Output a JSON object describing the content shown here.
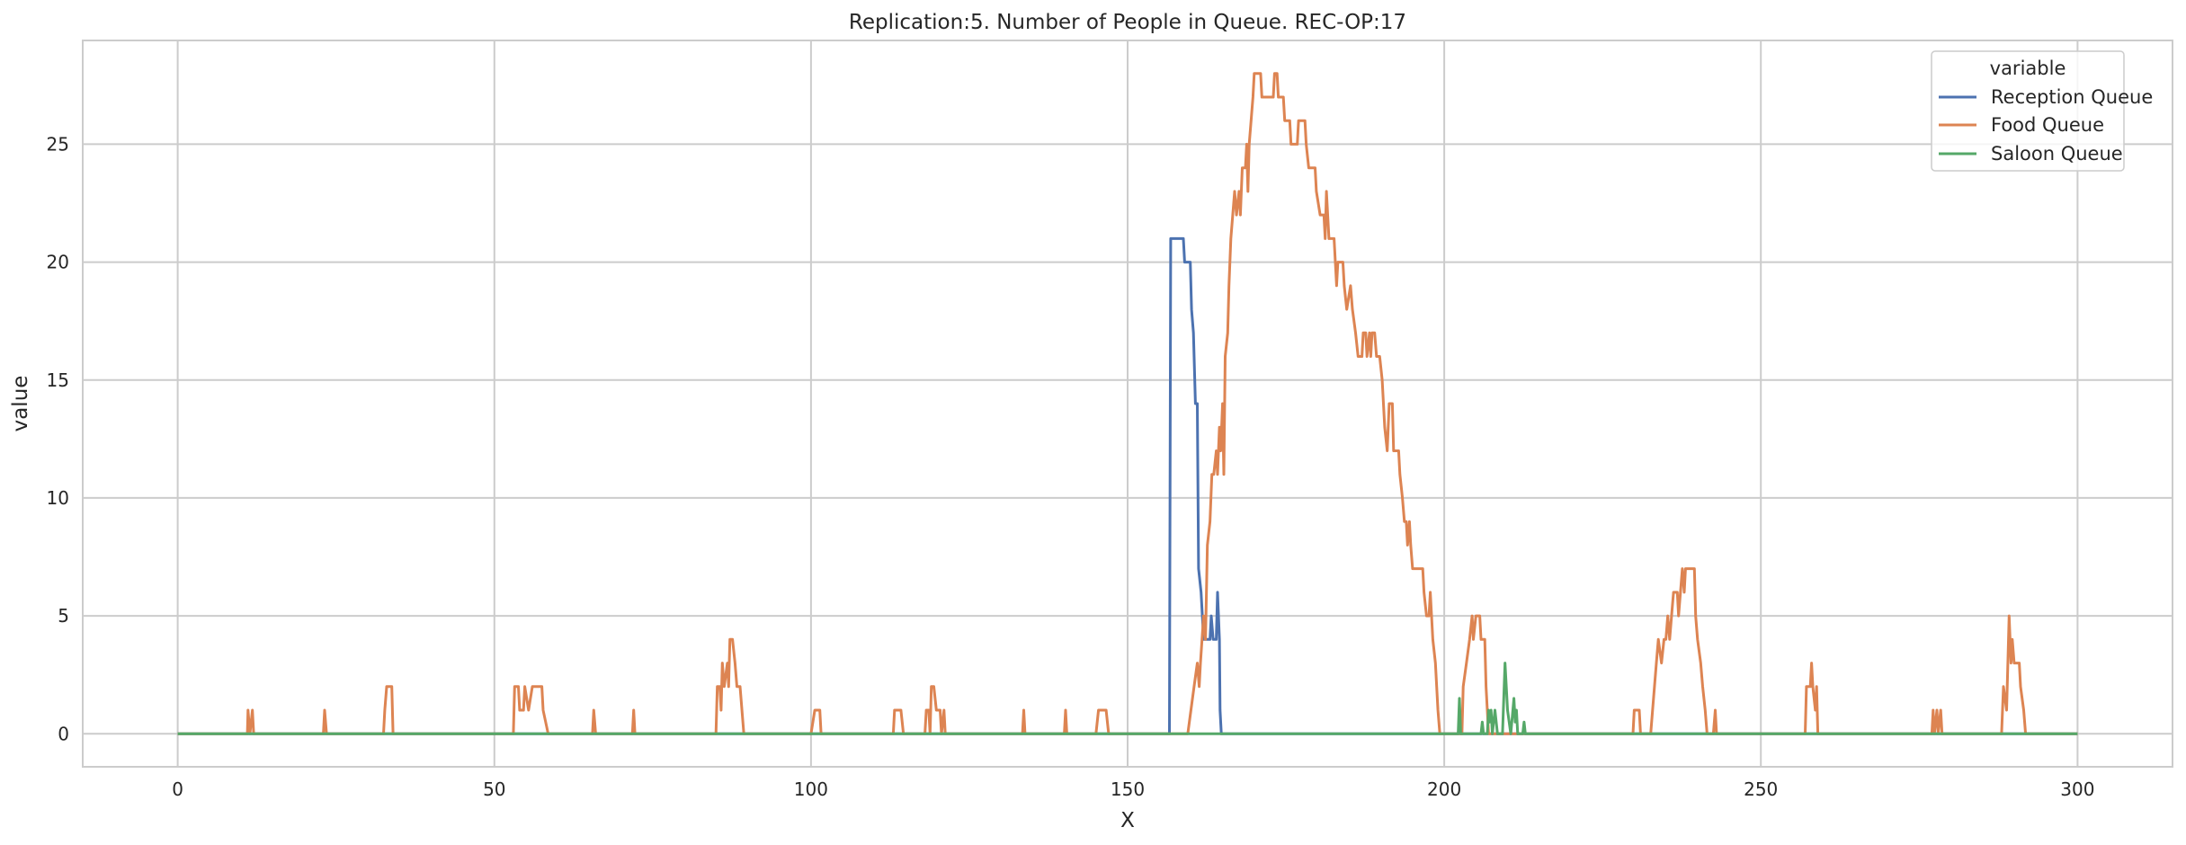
{
  "chart_data": {
    "type": "line",
    "title": "Replication:5. Number of People in Queue. REC-OP:17",
    "xlabel": "X",
    "ylabel": "value",
    "xlim": [
      -15,
      315
    ],
    "ylim": [
      -1.4,
      29.4
    ],
    "xticks": [
      0,
      50,
      100,
      150,
      200,
      250,
      300
    ],
    "yticks": [
      0,
      5,
      10,
      15,
      20,
      25
    ],
    "grid": true,
    "legend": {
      "title": "variable",
      "placement": "top-right"
    },
    "series": [
      {
        "name": "Reception Queue",
        "color": "#4c72b0",
        "points": [
          [
            0,
            0
          ],
          [
            156.6,
            0
          ],
          [
            156.8,
            21
          ],
          [
            158.8,
            21
          ],
          [
            159,
            20
          ],
          [
            159.9,
            20
          ],
          [
            160.1,
            18
          ],
          [
            160.4,
            17
          ],
          [
            160.7,
            14
          ],
          [
            161,
            14
          ],
          [
            161.2,
            7
          ],
          [
            161.6,
            6
          ],
          [
            162,
            4
          ],
          [
            163,
            4
          ],
          [
            163.2,
            5
          ],
          [
            163.5,
            4
          ],
          [
            164,
            4
          ],
          [
            164.2,
            6
          ],
          [
            164.5,
            4
          ],
          [
            164.6,
            1
          ],
          [
            164.8,
            0
          ],
          [
            300,
            0
          ]
        ]
      },
      {
        "name": "Food Queue",
        "color": "#dd8452",
        "points": [
          [
            0,
            0
          ],
          [
            11,
            0
          ],
          [
            11.1,
            1
          ],
          [
            11.4,
            0
          ],
          [
            11.8,
            1
          ],
          [
            12,
            0
          ],
          [
            23,
            0
          ],
          [
            23.2,
            1
          ],
          [
            23.5,
            0
          ],
          [
            32.5,
            0
          ],
          [
            32.7,
            1
          ],
          [
            33,
            2
          ],
          [
            33.8,
            2
          ],
          [
            34,
            0
          ],
          [
            53,
            0
          ],
          [
            53.2,
            2
          ],
          [
            53.8,
            2
          ],
          [
            54,
            1
          ],
          [
            54.6,
            1
          ],
          [
            54.8,
            2
          ],
          [
            55.4,
            1
          ],
          [
            56,
            2
          ],
          [
            57.5,
            2
          ],
          [
            57.7,
            1
          ],
          [
            58.5,
            0
          ],
          [
            65.5,
            0
          ],
          [
            65.7,
            1
          ],
          [
            66,
            0
          ],
          [
            71.8,
            0
          ],
          [
            72,
            1
          ],
          [
            72.2,
            0
          ],
          [
            85,
            0
          ],
          [
            85.2,
            2
          ],
          [
            85.6,
            2
          ],
          [
            85.8,
            1
          ],
          [
            86,
            3
          ],
          [
            86.3,
            2
          ],
          [
            86.8,
            3
          ],
          [
            87,
            2
          ],
          [
            87.2,
            4
          ],
          [
            87.6,
            4
          ],
          [
            88,
            3
          ],
          [
            88.3,
            2
          ],
          [
            88.8,
            2
          ],
          [
            89.4,
            0
          ],
          [
            100,
            0
          ],
          [
            100.6,
            1
          ],
          [
            101.4,
            1
          ],
          [
            101.6,
            0
          ],
          [
            113,
            0
          ],
          [
            113.2,
            1
          ],
          [
            114.2,
            1
          ],
          [
            114.6,
            0
          ],
          [
            118,
            0
          ],
          [
            118.2,
            1
          ],
          [
            118.6,
            1
          ],
          [
            118.8,
            0
          ],
          [
            119,
            2
          ],
          [
            119.4,
            2
          ],
          [
            119.8,
            1
          ],
          [
            120.4,
            1
          ],
          [
            120.6,
            0
          ],
          [
            121,
            1
          ],
          [
            121.2,
            0
          ],
          [
            133.4,
            0
          ],
          [
            133.6,
            1
          ],
          [
            133.8,
            0
          ],
          [
            140,
            0
          ],
          [
            140.2,
            1
          ],
          [
            140.4,
            0
          ],
          [
            145,
            0
          ],
          [
            145.4,
            1
          ],
          [
            146.6,
            1
          ],
          [
            147,
            0
          ],
          [
            159.5,
            0
          ],
          [
            160,
            1
          ],
          [
            160.5,
            2
          ],
          [
            161,
            3
          ],
          [
            161.3,
            2
          ],
          [
            161.5,
            3
          ],
          [
            162,
            5
          ],
          [
            162.3,
            4
          ],
          [
            162.6,
            8
          ],
          [
            163,
            9
          ],
          [
            163.3,
            11
          ],
          [
            163.6,
            11
          ],
          [
            164,
            12
          ],
          [
            164.2,
            11
          ],
          [
            164.5,
            13
          ],
          [
            164.7,
            12
          ],
          [
            165,
            14
          ],
          [
            165.2,
            11
          ],
          [
            165.4,
            16
          ],
          [
            165.8,
            17
          ],
          [
            166,
            19
          ],
          [
            166.3,
            21
          ],
          [
            166.6,
            22
          ],
          [
            166.9,
            23
          ],
          [
            167.2,
            22
          ],
          [
            167.6,
            23
          ],
          [
            167.8,
            22
          ],
          [
            168.1,
            24
          ],
          [
            168.6,
            24
          ],
          [
            168.8,
            25
          ],
          [
            169,
            23
          ],
          [
            169.2,
            25
          ],
          [
            169.5,
            26
          ],
          [
            169.8,
            27
          ],
          [
            170,
            28
          ],
          [
            171,
            28
          ],
          [
            171.2,
            27
          ],
          [
            172,
            27
          ],
          [
            173,
            27
          ],
          [
            173.2,
            28
          ],
          [
            173.6,
            28
          ],
          [
            173.8,
            27
          ],
          [
            174.6,
            27
          ],
          [
            174.8,
            26
          ],
          [
            175.6,
            26
          ],
          [
            175.8,
            25
          ],
          [
            176.8,
            25
          ],
          [
            177,
            26
          ],
          [
            178,
            26
          ],
          [
            178.2,
            25
          ],
          [
            178.6,
            24
          ],
          [
            179.6,
            24
          ],
          [
            179.8,
            23
          ],
          [
            180.4,
            22
          ],
          [
            181,
            22
          ],
          [
            181.2,
            21
          ],
          [
            181.4,
            23
          ],
          [
            181.6,
            22
          ],
          [
            181.8,
            21
          ],
          [
            182.6,
            21
          ],
          [
            182.8,
            20
          ],
          [
            183,
            19
          ],
          [
            183.2,
            20
          ],
          [
            184,
            20
          ],
          [
            184.2,
            19
          ],
          [
            184.6,
            18
          ],
          [
            185.2,
            19
          ],
          [
            185.5,
            18
          ],
          [
            186,
            17
          ],
          [
            186.4,
            16
          ],
          [
            187,
            16
          ],
          [
            187.2,
            17
          ],
          [
            187.6,
            17
          ],
          [
            187.8,
            16
          ],
          [
            188.2,
            17
          ],
          [
            188.4,
            16
          ],
          [
            188.6,
            17
          ],
          [
            189,
            17
          ],
          [
            189.3,
            16
          ],
          [
            189.8,
            16
          ],
          [
            190.2,
            15
          ],
          [
            190.6,
            13
          ],
          [
            191,
            12
          ],
          [
            191.3,
            14
          ],
          [
            191.8,
            14
          ],
          [
            192,
            12
          ],
          [
            192.8,
            12
          ],
          [
            193,
            11
          ],
          [
            193.4,
            10
          ],
          [
            193.7,
            9
          ],
          [
            194,
            9
          ],
          [
            194.2,
            8
          ],
          [
            194.5,
            9
          ],
          [
            194.7,
            8
          ],
          [
            195,
            7
          ],
          [
            196.6,
            7
          ],
          [
            196.8,
            6
          ],
          [
            197.2,
            5
          ],
          [
            197.6,
            5
          ],
          [
            197.8,
            6
          ],
          [
            198,
            5
          ],
          [
            198.2,
            4
          ],
          [
            198.6,
            3
          ],
          [
            198.8,
            2
          ],
          [
            199,
            1
          ],
          [
            199.3,
            0
          ],
          [
            202.8,
            0
          ],
          [
            203,
            2
          ],
          [
            203.5,
            3
          ],
          [
            204,
            4
          ],
          [
            204.4,
            5
          ],
          [
            204.6,
            4
          ],
          [
            205,
            5
          ],
          [
            205.6,
            5
          ],
          [
            205.8,
            4
          ],
          [
            206.4,
            4
          ],
          [
            206.6,
            2
          ],
          [
            207,
            0
          ],
          [
            229.8,
            0
          ],
          [
            230,
            1
          ],
          [
            230.8,
            1
          ],
          [
            231,
            0
          ],
          [
            232.6,
            0
          ],
          [
            233.2,
            2
          ],
          [
            233.5,
            3
          ],
          [
            233.8,
            4
          ],
          [
            234.3,
            3
          ],
          [
            234.7,
            4
          ],
          [
            235,
            4
          ],
          [
            235.3,
            5
          ],
          [
            235.6,
            4
          ],
          [
            235.9,
            5
          ],
          [
            236.2,
            6
          ],
          [
            236.8,
            6
          ],
          [
            237,
            5
          ],
          [
            237.3,
            6
          ],
          [
            237.6,
            7
          ],
          [
            237.9,
            6
          ],
          [
            238.1,
            7
          ],
          [
            239.5,
            7
          ],
          [
            239.7,
            5
          ],
          [
            240,
            4
          ],
          [
            240.5,
            3
          ],
          [
            240.8,
            2
          ],
          [
            241.2,
            1
          ],
          [
            241.5,
            0
          ],
          [
            242.5,
            0
          ],
          [
            242.8,
            1
          ],
          [
            243,
            0
          ],
          [
            257,
            0
          ],
          [
            257.2,
            2
          ],
          [
            257.8,
            2
          ],
          [
            258,
            3
          ],
          [
            258.2,
            2
          ],
          [
            258.6,
            1
          ],
          [
            258.8,
            2
          ],
          [
            259,
            0
          ],
          [
            277,
            0
          ],
          [
            277.2,
            1
          ],
          [
            277.4,
            0
          ],
          [
            277.8,
            1
          ],
          [
            278,
            0
          ],
          [
            278.4,
            1
          ],
          [
            278.6,
            0
          ],
          [
            288,
            0
          ],
          [
            288.3,
            2
          ],
          [
            288.8,
            1
          ],
          [
            289,
            3
          ],
          [
            289.2,
            5
          ],
          [
            289.5,
            3
          ],
          [
            289.7,
            4
          ],
          [
            290,
            3
          ],
          [
            290.8,
            3
          ],
          [
            291,
            2
          ],
          [
            291.5,
            1
          ],
          [
            291.8,
            0
          ],
          [
            300,
            0
          ]
        ]
      },
      {
        "name": "Saloon Queue",
        "color": "#55a868",
        "points": [
          [
            0,
            0
          ],
          [
            202.2,
            0
          ],
          [
            202.4,
            1.5
          ],
          [
            202.6,
            0
          ],
          [
            205.8,
            0
          ],
          [
            206,
            0.5
          ],
          [
            206.2,
            0
          ],
          [
            206.8,
            0
          ],
          [
            207,
            1
          ],
          [
            207.2,
            0.5
          ],
          [
            207.4,
            1
          ],
          [
            207.6,
            0
          ],
          [
            208,
            1
          ],
          [
            208.4,
            0
          ],
          [
            209.2,
            0
          ],
          [
            209.4,
            1.5
          ],
          [
            209.6,
            3
          ],
          [
            209.8,
            2
          ],
          [
            210,
            1
          ],
          [
            210.5,
            0
          ],
          [
            211,
            1.5
          ],
          [
            211.2,
            0.5
          ],
          [
            211.4,
            1
          ],
          [
            211.6,
            0
          ],
          [
            212.4,
            0
          ],
          [
            212.6,
            0.5
          ],
          [
            212.8,
            0
          ],
          [
            300,
            0
          ]
        ]
      }
    ]
  }
}
